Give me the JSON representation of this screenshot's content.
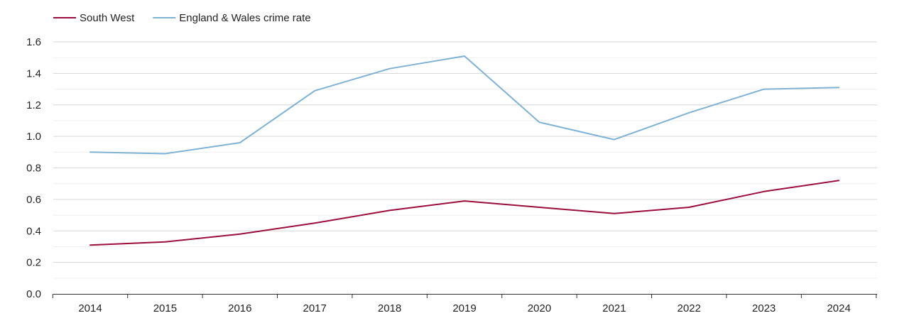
{
  "chart_data": {
    "type": "line",
    "title": "",
    "xlabel": "",
    "ylabel": "",
    "categories": [
      "2014",
      "2015",
      "2016",
      "2017",
      "2018",
      "2019",
      "2020",
      "2021",
      "2022",
      "2023",
      "2024"
    ],
    "ylim": [
      0,
      1.6
    ],
    "yticks": [
      "0.0",
      "0.2",
      "0.4",
      "0.6",
      "0.8",
      "1.0",
      "1.2",
      "1.4",
      "1.6"
    ],
    "grid": true,
    "legend_position": "top-left",
    "series": [
      {
        "name": "South West",
        "color": "#9b0d3a",
        "values": [
          0.31,
          0.33,
          0.38,
          0.45,
          0.53,
          0.59,
          0.55,
          0.51,
          0.55,
          0.65,
          0.72
        ]
      },
      {
        "name": "England & Wales crime rate",
        "color": "#7fb2d3",
        "values": [
          0.9,
          0.89,
          0.96,
          1.29,
          1.43,
          1.51,
          1.09,
          0.98,
          1.15,
          1.3,
          1.31
        ]
      }
    ]
  }
}
